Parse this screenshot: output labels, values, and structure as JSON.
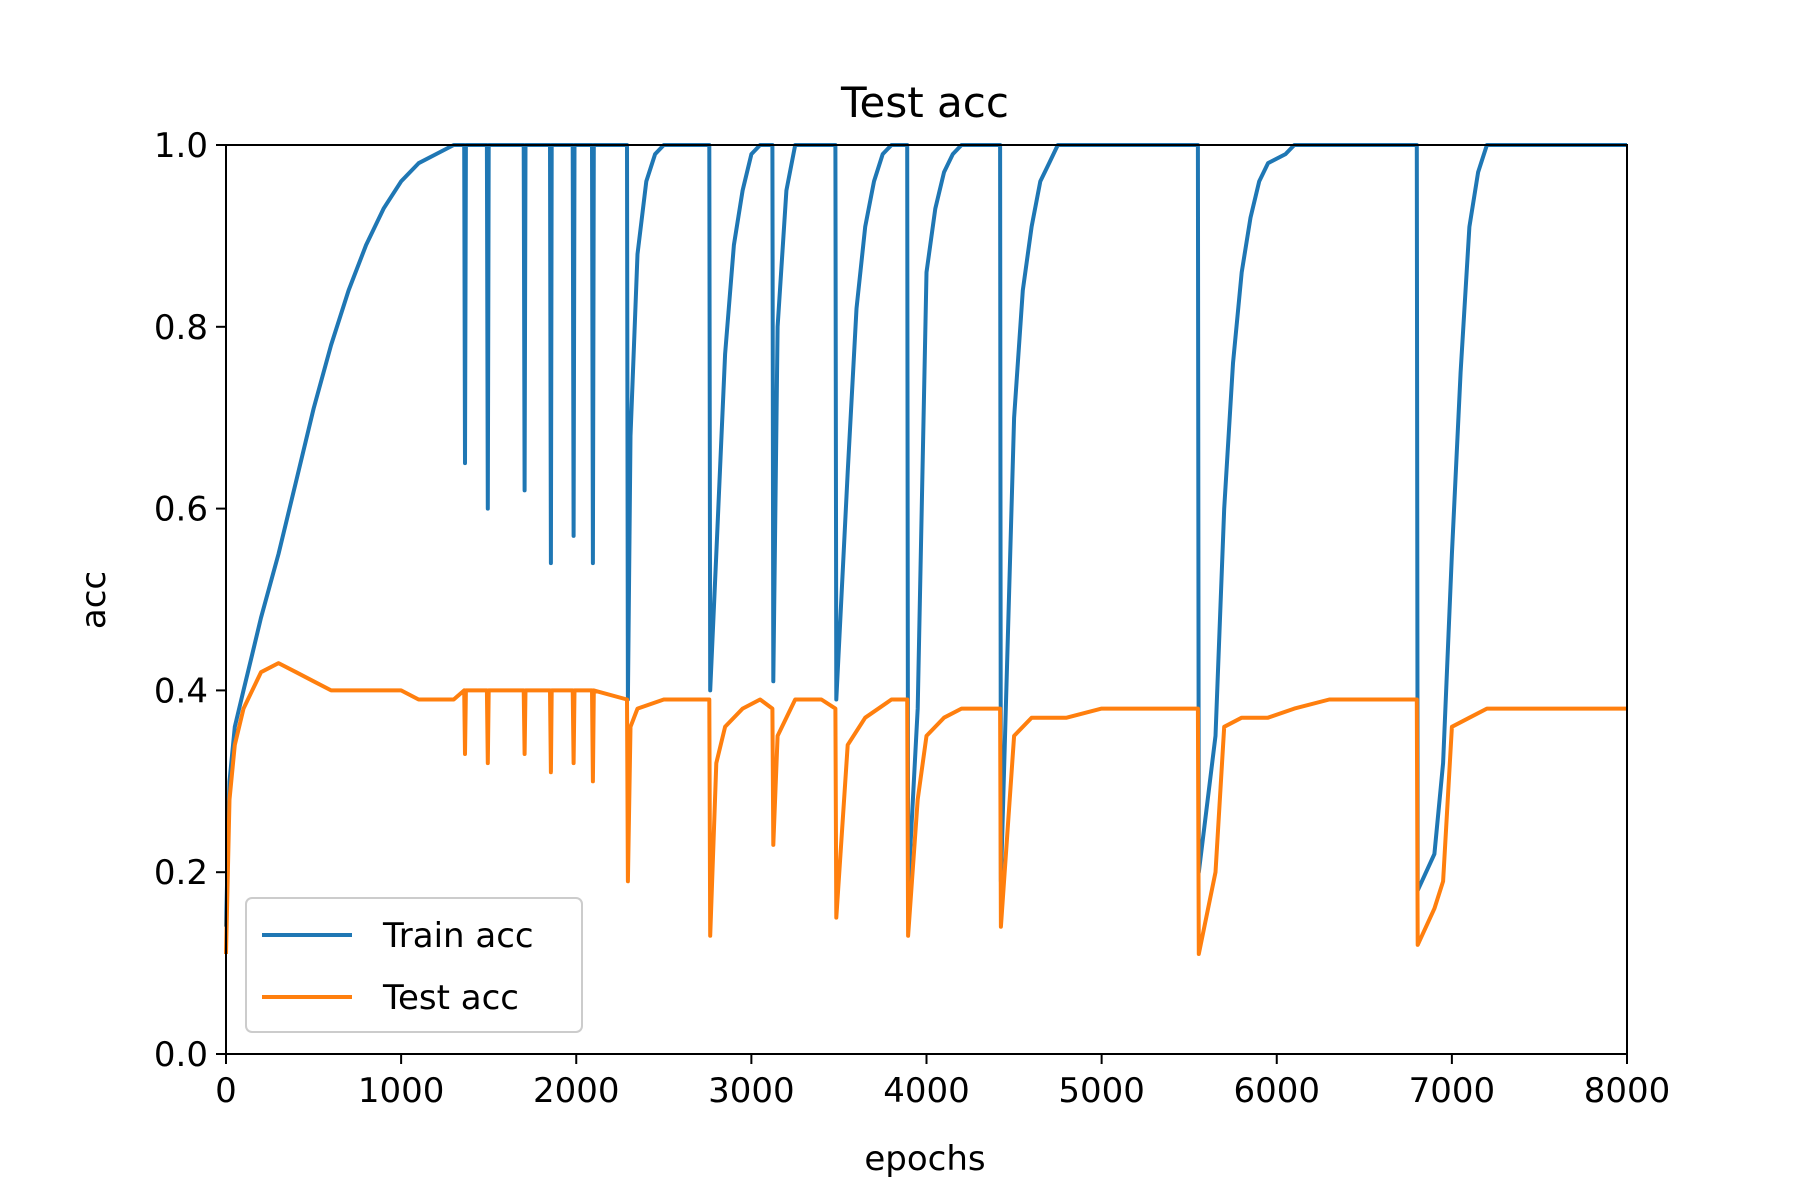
{
  "chart_data": {
    "type": "line",
    "title": "Test acc",
    "xlabel": "epochs",
    "ylabel": "acc",
    "xlim": [
      0,
      8000
    ],
    "ylim": [
      0.0,
      1.0
    ],
    "xticks": [
      "0",
      "1000",
      "2000",
      "3000",
      "4000",
      "5000",
      "6000",
      "7000",
      "8000"
    ],
    "yticks": [
      "0.0",
      "0.2",
      "0.4",
      "0.6",
      "0.8",
      "1.0"
    ],
    "grid": false,
    "legend_position": "lower-left",
    "series": [
      {
        "name": "Train acc",
        "color": "#1f77b4",
        "points": [
          [
            0,
            0.14
          ],
          [
            20,
            0.3
          ],
          [
            50,
            0.36
          ],
          [
            100,
            0.4
          ],
          [
            150,
            0.44
          ],
          [
            200,
            0.48
          ],
          [
            300,
            0.55
          ],
          [
            400,
            0.63
          ],
          [
            500,
            0.71
          ],
          [
            600,
            0.78
          ],
          [
            700,
            0.84
          ],
          [
            800,
            0.89
          ],
          [
            900,
            0.93
          ],
          [
            1000,
            0.96
          ],
          [
            1100,
            0.98
          ],
          [
            1200,
            0.99
          ],
          [
            1300,
            1.0
          ],
          [
            1360,
            1.0
          ],
          [
            1365,
            0.65
          ],
          [
            1370,
            1.0
          ],
          [
            1490,
            1.0
          ],
          [
            1495,
            0.6
          ],
          [
            1500,
            1.0
          ],
          [
            1700,
            1.0
          ],
          [
            1705,
            0.62
          ],
          [
            1710,
            1.0
          ],
          [
            1850,
            1.0
          ],
          [
            1855,
            0.54
          ],
          [
            1860,
            1.0
          ],
          [
            1980,
            1.0
          ],
          [
            1985,
            0.57
          ],
          [
            1990,
            1.0
          ],
          [
            2090,
            1.0
          ],
          [
            2095,
            0.54
          ],
          [
            2100,
            1.0
          ],
          [
            2290,
            1.0
          ],
          [
            2295,
            0.39
          ],
          [
            2310,
            0.68
          ],
          [
            2350,
            0.88
          ],
          [
            2400,
            0.96
          ],
          [
            2450,
            0.99
          ],
          [
            2500,
            1.0
          ],
          [
            2760,
            1.0
          ],
          [
            2765,
            0.4
          ],
          [
            2800,
            0.55
          ],
          [
            2850,
            0.77
          ],
          [
            2900,
            0.89
          ],
          [
            2950,
            0.95
          ],
          [
            3000,
            0.99
          ],
          [
            3050,
            1.0
          ],
          [
            3120,
            1.0
          ],
          [
            3125,
            0.41
          ],
          [
            3150,
            0.8
          ],
          [
            3200,
            0.95
          ],
          [
            3250,
            1.0
          ],
          [
            3480,
            1.0
          ],
          [
            3485,
            0.39
          ],
          [
            3550,
            0.64
          ],
          [
            3600,
            0.82
          ],
          [
            3650,
            0.91
          ],
          [
            3700,
            0.96
          ],
          [
            3750,
            0.99
          ],
          [
            3800,
            1.0
          ],
          [
            3890,
            1.0
          ],
          [
            3895,
            0.18
          ],
          [
            3950,
            0.38
          ],
          [
            4000,
            0.86
          ],
          [
            4050,
            0.93
          ],
          [
            4100,
            0.97
          ],
          [
            4150,
            0.99
          ],
          [
            4200,
            1.0
          ],
          [
            4420,
            1.0
          ],
          [
            4425,
            0.19
          ],
          [
            4500,
            0.7
          ],
          [
            4550,
            0.84
          ],
          [
            4600,
            0.91
          ],
          [
            4650,
            0.96
          ],
          [
            4700,
            0.98
          ],
          [
            4750,
            1.0
          ],
          [
            4820,
            1.0
          ],
          [
            5550,
            1.0
          ],
          [
            5555,
            0.2
          ],
          [
            5650,
            0.35
          ],
          [
            5700,
            0.6
          ],
          [
            5750,
            0.76
          ],
          [
            5800,
            0.86
          ],
          [
            5850,
            0.92
          ],
          [
            5900,
            0.96
          ],
          [
            5950,
            0.98
          ],
          [
            6050,
            0.99
          ],
          [
            6100,
            1.0
          ],
          [
            6800,
            1.0
          ],
          [
            6805,
            0.18
          ],
          [
            6900,
            0.22
          ],
          [
            6950,
            0.32
          ],
          [
            7000,
            0.55
          ],
          [
            7050,
            0.75
          ],
          [
            7100,
            0.91
          ],
          [
            7150,
            0.97
          ],
          [
            7200,
            1.0
          ],
          [
            8000,
            1.0
          ]
        ]
      },
      {
        "name": "Test acc",
        "color": "#ff7f0e",
        "points": [
          [
            0,
            0.11
          ],
          [
            20,
            0.28
          ],
          [
            50,
            0.34
          ],
          [
            100,
            0.38
          ],
          [
            200,
            0.42
          ],
          [
            300,
            0.43
          ],
          [
            400,
            0.42
          ],
          [
            500,
            0.41
          ],
          [
            600,
            0.4
          ],
          [
            700,
            0.4
          ],
          [
            800,
            0.4
          ],
          [
            900,
            0.4
          ],
          [
            1000,
            0.4
          ],
          [
            1100,
            0.39
          ],
          [
            1200,
            0.39
          ],
          [
            1300,
            0.39
          ],
          [
            1360,
            0.4
          ],
          [
            1365,
            0.33
          ],
          [
            1370,
            0.4
          ],
          [
            1490,
            0.4
          ],
          [
            1495,
            0.32
          ],
          [
            1500,
            0.4
          ],
          [
            1700,
            0.4
          ],
          [
            1705,
            0.33
          ],
          [
            1710,
            0.4
          ],
          [
            1850,
            0.4
          ],
          [
            1855,
            0.31
          ],
          [
            1860,
            0.4
          ],
          [
            1980,
            0.4
          ],
          [
            1985,
            0.32
          ],
          [
            1990,
            0.4
          ],
          [
            2090,
            0.4
          ],
          [
            2095,
            0.3
          ],
          [
            2100,
            0.4
          ],
          [
            2290,
            0.39
          ],
          [
            2295,
            0.19
          ],
          [
            2310,
            0.36
          ],
          [
            2350,
            0.38
          ],
          [
            2500,
            0.39
          ],
          [
            2700,
            0.39
          ],
          [
            2760,
            0.39
          ],
          [
            2765,
            0.13
          ],
          [
            2800,
            0.32
          ],
          [
            2850,
            0.36
          ],
          [
            2950,
            0.38
          ],
          [
            3050,
            0.39
          ],
          [
            3120,
            0.38
          ],
          [
            3125,
            0.23
          ],
          [
            3150,
            0.35
          ],
          [
            3250,
            0.39
          ],
          [
            3400,
            0.39
          ],
          [
            3480,
            0.38
          ],
          [
            3485,
            0.15
          ],
          [
            3550,
            0.34
          ],
          [
            3650,
            0.37
          ],
          [
            3800,
            0.39
          ],
          [
            3890,
            0.39
          ],
          [
            3895,
            0.13
          ],
          [
            3950,
            0.28
          ],
          [
            4000,
            0.35
          ],
          [
            4100,
            0.37
          ],
          [
            4200,
            0.38
          ],
          [
            4300,
            0.38
          ],
          [
            4420,
            0.38
          ],
          [
            4425,
            0.14
          ],
          [
            4500,
            0.35
          ],
          [
            4600,
            0.37
          ],
          [
            4800,
            0.37
          ],
          [
            5000,
            0.38
          ],
          [
            5300,
            0.38
          ],
          [
            5550,
            0.38
          ],
          [
            5555,
            0.11
          ],
          [
            5650,
            0.2
          ],
          [
            5700,
            0.36
          ],
          [
            5800,
            0.37
          ],
          [
            5950,
            0.37
          ],
          [
            6100,
            0.38
          ],
          [
            6300,
            0.39
          ],
          [
            6500,
            0.39
          ],
          [
            6800,
            0.39
          ],
          [
            6805,
            0.12
          ],
          [
            6900,
            0.16
          ],
          [
            6950,
            0.19
          ],
          [
            7000,
            0.36
          ],
          [
            7100,
            0.37
          ],
          [
            7200,
            0.38
          ],
          [
            7500,
            0.38
          ],
          [
            8000,
            0.38
          ]
        ]
      }
    ]
  }
}
